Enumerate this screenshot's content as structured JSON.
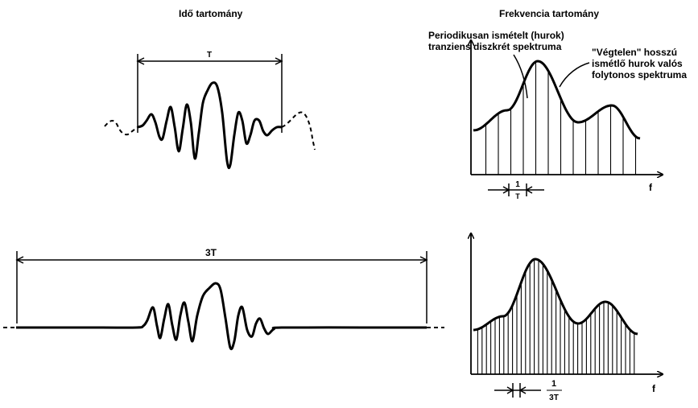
{
  "time_domain": {
    "heading": "Idő tartomány",
    "period_label": "T",
    "triple_period_label": "3T"
  },
  "frequency_domain": {
    "heading": "Frekvencia tartomány",
    "discrete_note": [
      "Periodikusan ismételt (hurok)",
      "tranziens diszkrét spektruma"
    ],
    "continuous_note": [
      "\"Végtelen\" hosszú",
      "ismétlő hurok valós",
      "folytonos spektruma"
    ],
    "axis_label": "f",
    "top_spacing_num": "1",
    "top_spacing_den": "T",
    "bottom_spacing_num": "1",
    "bottom_spacing_den": "3T"
  },
  "colors": {
    "ink": "#000000",
    "background": "#ffffff"
  }
}
